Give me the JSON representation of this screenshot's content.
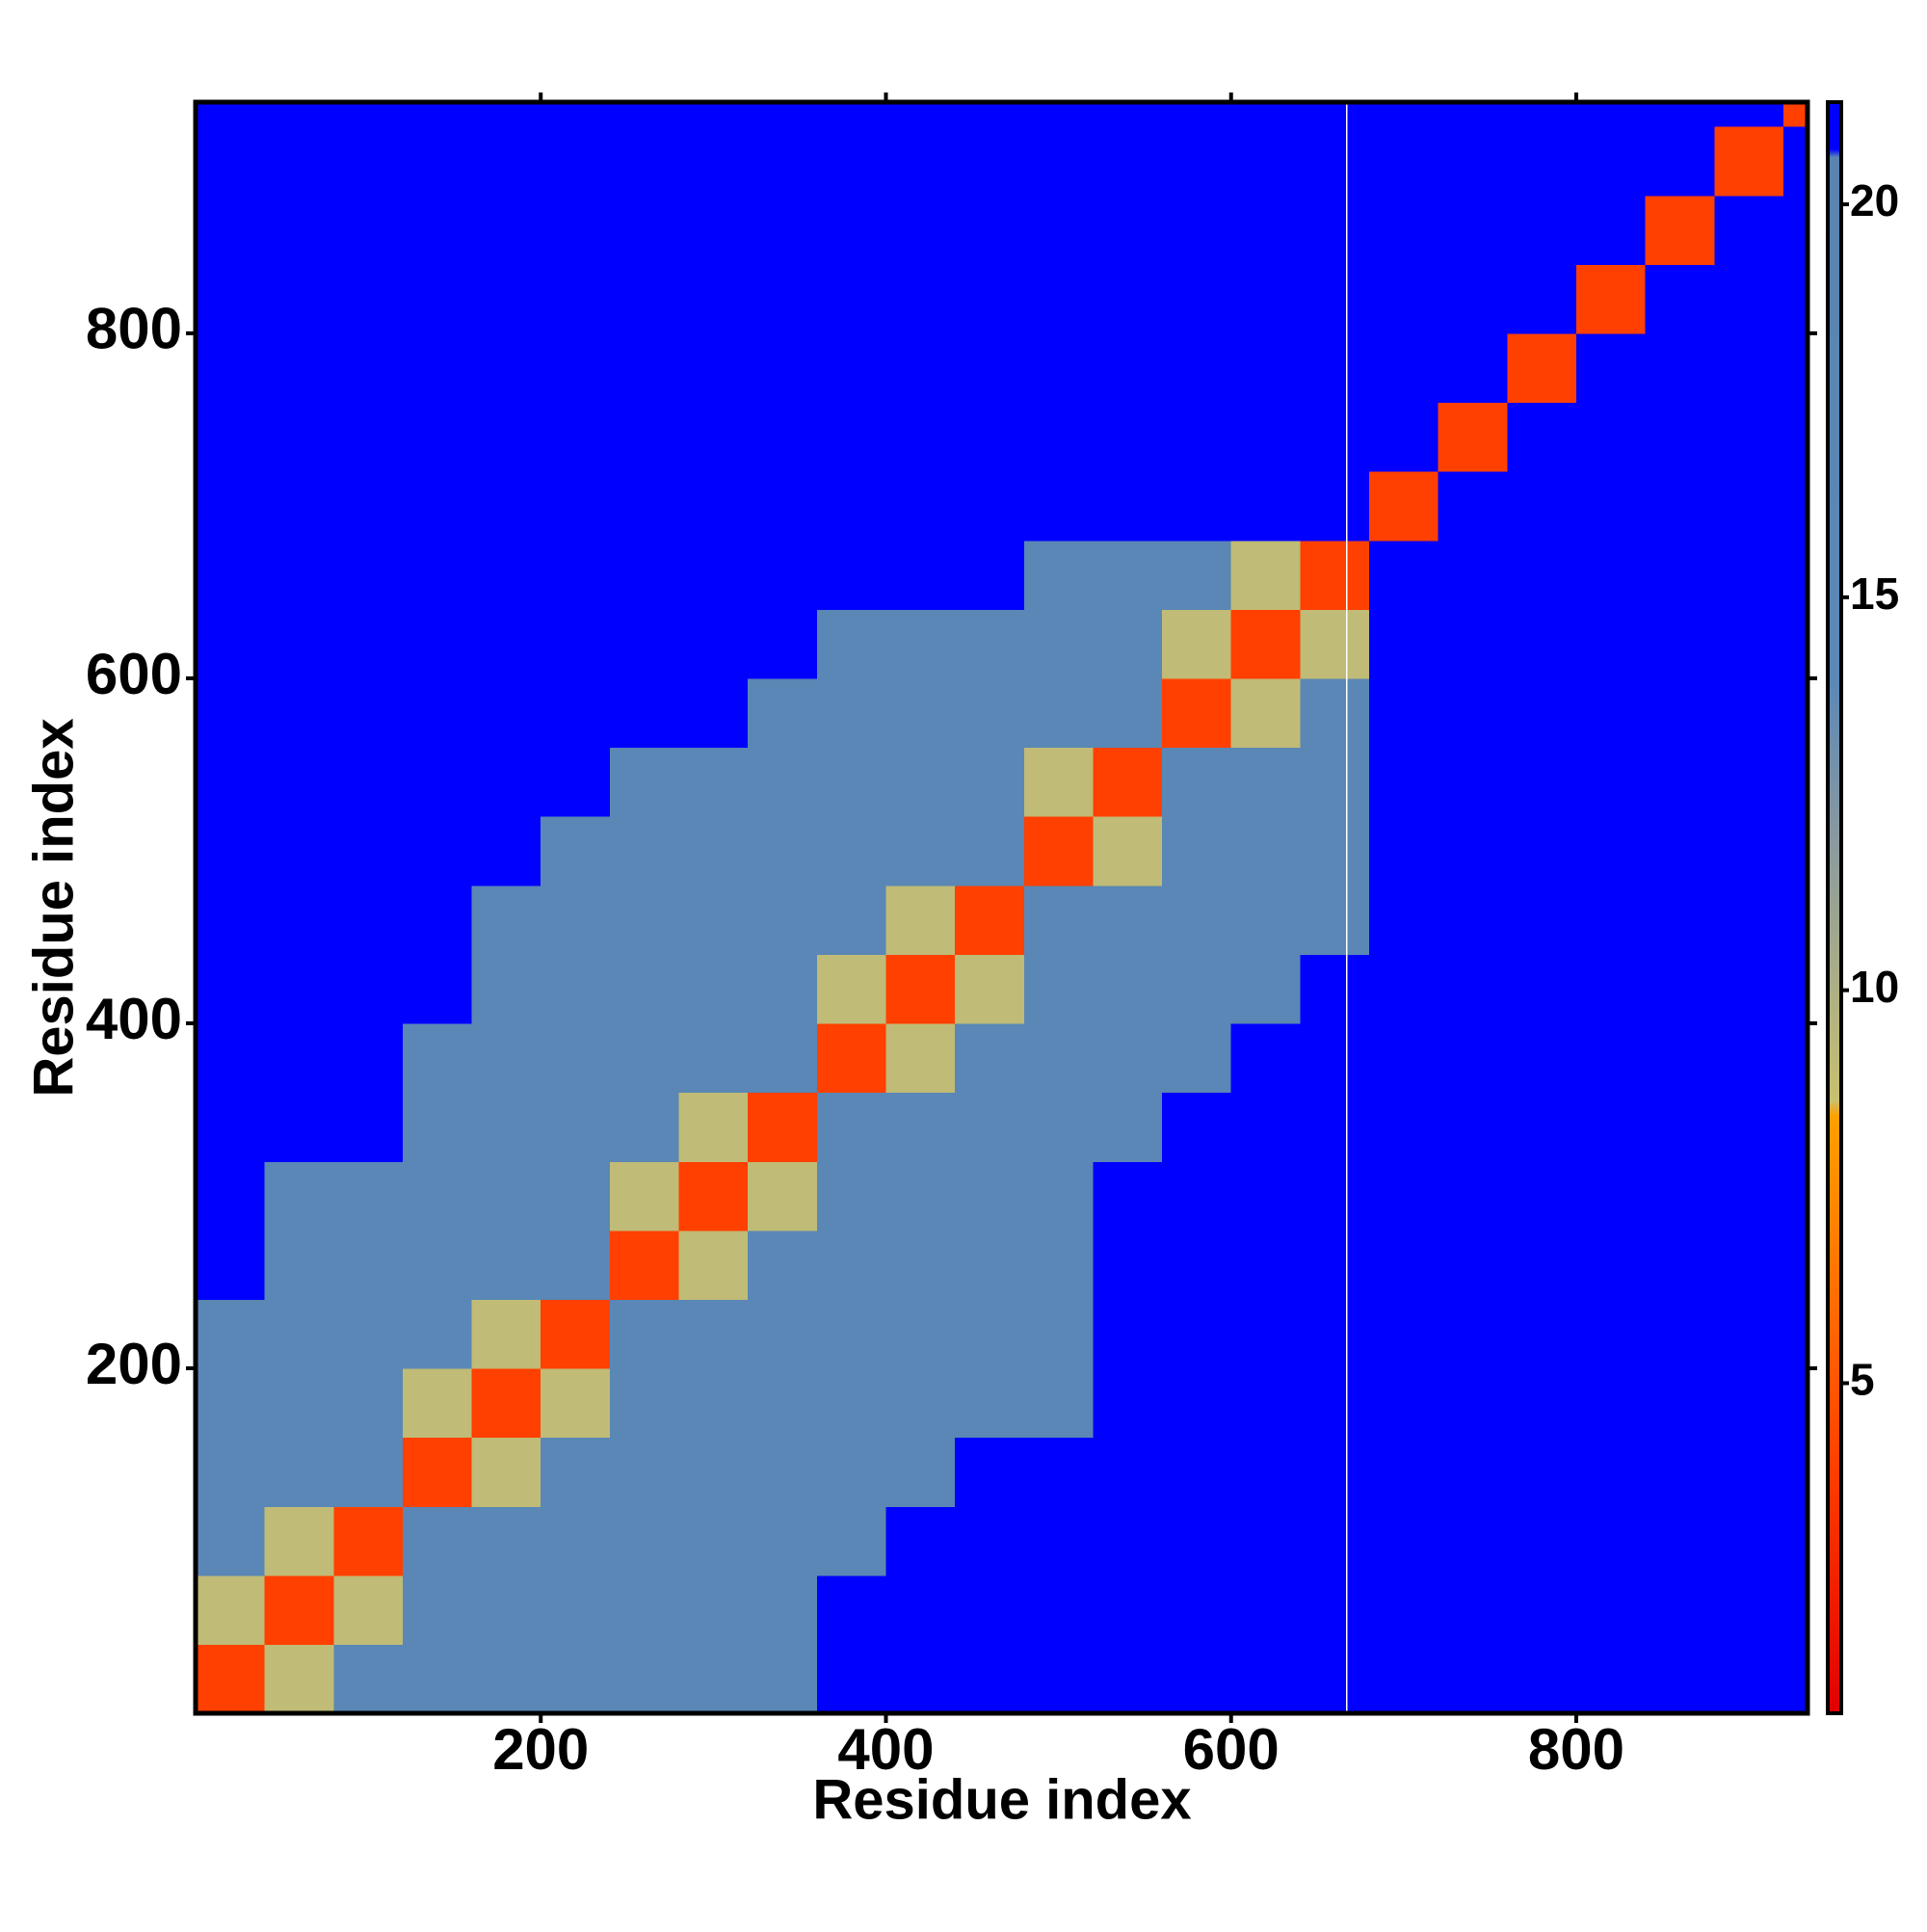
{
  "chart_data": {
    "type": "heatmap",
    "x_label": "Residue index",
    "y_label": "Residue index",
    "xlim": [
      0,
      934
    ],
    "ylim": [
      0,
      934
    ],
    "xticks": [
      200,
      400,
      600,
      800
    ],
    "yticks": [
      200,
      400,
      600,
      800
    ],
    "x_edges": [
      0,
      40,
      80,
      120,
      160,
      200,
      240,
      280,
      320,
      360,
      400,
      440,
      480,
      520,
      560,
      600,
      640,
      680,
      720,
      760,
      800,
      840,
      880,
      920,
      934
    ],
    "y_edges": [
      0,
      40,
      80,
      120,
      160,
      200,
      240,
      280,
      320,
      360,
      400,
      440,
      480,
      520,
      560,
      600,
      640,
      680,
      720,
      760,
      800,
      840,
      880,
      920,
      934
    ],
    "z": [
      [
        4,
        9,
        16,
        16,
        16,
        16,
        16,
        16,
        16,
        21,
        21,
        21,
        21,
        21,
        21,
        21,
        21,
        21,
        21,
        21,
        21,
        21,
        21,
        21
      ],
      [
        9,
        4,
        9,
        16,
        16,
        16,
        16,
        16,
        16,
        21,
        21,
        21,
        21,
        21,
        21,
        21,
        21,
        21,
        21,
        21,
        21,
        21,
        21,
        21
      ],
      [
        16,
        9,
        4,
        16,
        16,
        16,
        16,
        16,
        16,
        16,
        21,
        21,
        21,
        21,
        21,
        21,
        21,
        21,
        21,
        21,
        21,
        21,
        21,
        21
      ],
      [
        16,
        16,
        16,
        4,
        9,
        16,
        16,
        16,
        16,
        16,
        16,
        21,
        21,
        21,
        21,
        21,
        21,
        21,
        21,
        21,
        21,
        21,
        21,
        21
      ],
      [
        16,
        16,
        16,
        9,
        4,
        9,
        16,
        16,
        16,
        16,
        16,
        16,
        16,
        21,
        21,
        21,
        21,
        21,
        21,
        21,
        21,
        21,
        21,
        21
      ],
      [
        16,
        16,
        16,
        16,
        9,
        4,
        16,
        16,
        16,
        16,
        16,
        16,
        16,
        21,
        21,
        21,
        21,
        21,
        21,
        21,
        21,
        21,
        21,
        21
      ],
      [
        21,
        16,
        16,
        16,
        16,
        16,
        4,
        9,
        16,
        16,
        16,
        16,
        16,
        21,
        21,
        21,
        21,
        21,
        21,
        21,
        21,
        21,
        21,
        21
      ],
      [
        21,
        16,
        16,
        16,
        16,
        16,
        9,
        4,
        9,
        16,
        16,
        16,
        16,
        21,
        21,
        21,
        21,
        21,
        21,
        21,
        21,
        21,
        21,
        21
      ],
      [
        21,
        21,
        21,
        16,
        16,
        16,
        16,
        9,
        4,
        16,
        16,
        16,
        16,
        16,
        21,
        21,
        21,
        21,
        21,
        21,
        21,
        21,
        21,
        21
      ],
      [
        21,
        21,
        21,
        16,
        16,
        16,
        16,
        16,
        16,
        4,
        9,
        16,
        16,
        16,
        16,
        21,
        21,
        21,
        21,
        21,
        21,
        21,
        21,
        21
      ],
      [
        21,
        21,
        21,
        21,
        16,
        16,
        16,
        16,
        16,
        9,
        4,
        9,
        16,
        16,
        16,
        16,
        21,
        21,
        21,
        21,
        21,
        21,
        21,
        21
      ],
      [
        21,
        21,
        21,
        21,
        16,
        16,
        16,
        16,
        16,
        16,
        9,
        4,
        16,
        16,
        16,
        16,
        16,
        21,
        21,
        21,
        21,
        21,
        21,
        21
      ],
      [
        21,
        21,
        21,
        21,
        21,
        16,
        16,
        16,
        16,
        16,
        16,
        16,
        4,
        9,
        16,
        16,
        16,
        21,
        21,
        21,
        21,
        21,
        21,
        21
      ],
      [
        21,
        21,
        21,
        21,
        21,
        21,
        16,
        16,
        16,
        16,
        16,
        16,
        9,
        4,
        16,
        16,
        16,
        21,
        21,
        21,
        21,
        21,
        21,
        21
      ],
      [
        21,
        21,
        21,
        21,
        21,
        21,
        21,
        21,
        16,
        16,
        16,
        16,
        16,
        16,
        4,
        9,
        16,
        21,
        21,
        21,
        21,
        21,
        21,
        21
      ],
      [
        21,
        21,
        21,
        21,
        21,
        21,
        21,
        21,
        21,
        16,
        16,
        16,
        16,
        16,
        9,
        4,
        9,
        21,
        21,
        21,
        21,
        21,
        21,
        21
      ],
      [
        21,
        21,
        21,
        21,
        21,
        21,
        21,
        21,
        21,
        21,
        21,
        21,
        16,
        16,
        16,
        9,
        4,
        21,
        21,
        21,
        21,
        21,
        21,
        21
      ],
      [
        21,
        21,
        21,
        21,
        21,
        21,
        21,
        21,
        21,
        21,
        21,
        21,
        21,
        21,
        21,
        21,
        21,
        4,
        21,
        21,
        21,
        21,
        21,
        21
      ],
      [
        21,
        21,
        21,
        21,
        21,
        21,
        21,
        21,
        21,
        21,
        21,
        21,
        21,
        21,
        21,
        21,
        21,
        21,
        4,
        21,
        21,
        21,
        21,
        21
      ],
      [
        21,
        21,
        21,
        21,
        21,
        21,
        21,
        21,
        21,
        21,
        21,
        21,
        21,
        21,
        21,
        21,
        21,
        21,
        21,
        4,
        21,
        21,
        21,
        21
      ],
      [
        21,
        21,
        21,
        21,
        21,
        21,
        21,
        21,
        21,
        21,
        21,
        21,
        21,
        21,
        21,
        21,
        21,
        21,
        21,
        21,
        4,
        21,
        21,
        21
      ],
      [
        21,
        21,
        21,
        21,
        21,
        21,
        21,
        21,
        21,
        21,
        21,
        21,
        21,
        21,
        21,
        21,
        21,
        21,
        21,
        21,
        21,
        4,
        21,
        21
      ],
      [
        21,
        21,
        21,
        21,
        21,
        21,
        21,
        21,
        21,
        21,
        21,
        21,
        21,
        21,
        21,
        21,
        21,
        21,
        21,
        21,
        21,
        21,
        4,
        21
      ],
      [
        21,
        21,
        21,
        21,
        21,
        21,
        21,
        21,
        21,
        21,
        21,
        21,
        21,
        21,
        21,
        21,
        21,
        21,
        21,
        21,
        21,
        21,
        21,
        4
      ]
    ],
    "colorscale": [
      [
        0.8,
        "#e00000"
      ],
      [
        4,
        "#ff4000"
      ],
      [
        8.4,
        "#ffa000"
      ],
      [
        8.6,
        "#c8c070"
      ],
      [
        12,
        "#8898a0"
      ],
      [
        14,
        "#5a88b8"
      ],
      [
        20.6,
        "#5a84b0"
      ],
      [
        20.7,
        "#0000ff"
      ],
      [
        21.3,
        "#0000ff"
      ]
    ],
    "clim": [
      0.8,
      21.3
    ],
    "cticks": [
      5,
      10,
      15,
      20
    ],
    "vlines": [
      667
    ],
    "vline_color": "#ffffff"
  }
}
